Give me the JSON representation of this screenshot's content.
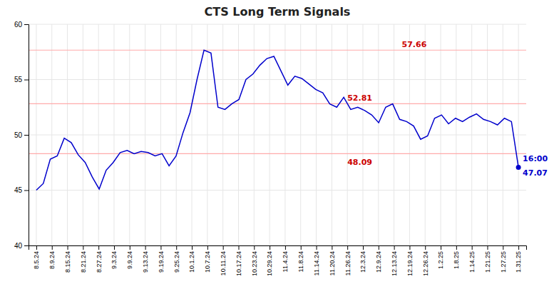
{
  "chart_data": {
    "type": "line",
    "title": "CTS Long Term Signals",
    "x": [
      0,
      0.4493,
      0.8986,
      1.3478,
      1.7971,
      2.2464,
      2.6957,
      3.1449,
      3.5942,
      4.0435,
      4.4928,
      4.942,
      5.3913,
      5.8406,
      6.2899,
      6.7391,
      7.1884,
      7.6377,
      8.087,
      8.5362,
      8.9855,
      9.4348,
      9.8841,
      10.3333,
      10.7826,
      11.2319,
      11.6812,
      12.1304,
      12.5797,
      13.029,
      13.4783,
      13.9275,
      14.3768,
      14.8261,
      15.2754,
      15.7246,
      16.1739,
      16.6232,
      17.0725,
      17.5217,
      17.971,
      18.4203,
      18.8696,
      19.3188,
      19.7681,
      20.2174,
      20.6667,
      21.1159,
      21.5652,
      22.0145,
      22.4638,
      22.913,
      23.3623,
      23.8116,
      24.2609,
      24.7101,
      25.1594,
      25.6087,
      26.058,
      26.5072,
      26.9565,
      27.4058,
      27.8551,
      28.3043,
      28.7536,
      29.2029,
      29.6522,
      30.1014,
      30.5507,
      31
    ],
    "values": [
      45.0,
      45.6,
      47.8,
      48.1,
      49.7,
      49.3,
      48.2,
      47.5,
      46.2,
      45.1,
      46.8,
      47.5,
      48.4,
      48.6,
      48.3,
      48.5,
      48.4,
      48.1,
      48.3,
      47.2,
      48.09,
      50.2,
      52.0,
      55.0,
      57.66,
      57.4,
      52.5,
      52.3,
      52.81,
      53.2,
      55.0,
      55.5,
      56.3,
      56.9,
      57.1,
      55.8,
      54.5,
      55.3,
      55.1,
      54.6,
      54.1,
      53.8,
      52.8,
      52.5,
      53.4,
      52.3,
      52.5,
      52.2,
      51.8,
      51.1,
      52.5,
      52.8,
      51.4,
      51.2,
      50.8,
      49.6,
      49.9,
      51.5,
      51.8,
      51.0,
      51.5,
      51.2,
      51.6,
      51.9,
      51.4,
      51.2,
      50.9,
      51.5,
      51.2,
      47.07
    ],
    "color": "#0000cc",
    "hlines": {
      "values": [
        48.3,
        52.81,
        57.66
      ],
      "color": "#ffaaaa"
    },
    "annotations": [
      {
        "text": "48.09",
        "x": 20,
        "y": 48.09,
        "color": "#cc0000"
      },
      {
        "text": "57.66",
        "x": 23.5,
        "y": 57.66,
        "color": "#cc0000"
      },
      {
        "text": "52.81",
        "x": 20,
        "y": 52.81,
        "color": "#cc0000"
      },
      {
        "text": "16:00",
        "x": 31,
        "y": 47.07,
        "color": "#0000cc"
      },
      {
        "text": "47.07",
        "x": 31,
        "y": 47.07,
        "color": "#0000cc"
      }
    ],
    "xlim": [
      -0.5,
      31.5
    ],
    "xticks": [
      {
        "value": 0,
        "label": "8.5.24"
      },
      {
        "value": 1,
        "label": "8.9.24"
      },
      {
        "value": 2,
        "label": "8.15.24"
      },
      {
        "value": 3,
        "label": "8.21.24"
      },
      {
        "value": 4,
        "label": "8.27.24"
      },
      {
        "value": 5,
        "label": "9.3.24"
      },
      {
        "value": 6,
        "label": "9.9.24"
      },
      {
        "value": 7,
        "label": "9.13.24"
      },
      {
        "value": 8,
        "label": "9.19.24"
      },
      {
        "value": 9,
        "label": "9.25.24"
      },
      {
        "value": 10,
        "label": "10.1.24"
      },
      {
        "value": 11,
        "label": "10.7.24"
      },
      {
        "value": 12,
        "label": "10.11.24"
      },
      {
        "value": 13,
        "label": "10.17.24"
      },
      {
        "value": 14,
        "label": "10.23.24"
      },
      {
        "value": 15,
        "label": "10.29.24"
      },
      {
        "value": 16,
        "label": "11.4.24"
      },
      {
        "value": 17,
        "label": "11.8.24"
      },
      {
        "value": 18,
        "label": "11.14.24"
      },
      {
        "value": 19,
        "label": "11.20.24"
      },
      {
        "value": 20,
        "label": "11.26.24"
      },
      {
        "value": 21,
        "label": "12.3.24"
      },
      {
        "value": 22,
        "label": "12.9.24"
      },
      {
        "value": 23,
        "label": "12.13.24"
      },
      {
        "value": 24,
        "label": "12.19.24"
      },
      {
        "value": 25,
        "label": "12.26.24"
      },
      {
        "value": 26,
        "label": "1.2.25"
      },
      {
        "value": 27,
        "label": "1.8.25"
      },
      {
        "value": 28,
        "label": "1.14.25"
      },
      {
        "value": 29,
        "label": "1.21.25"
      },
      {
        "value": 30,
        "label": "1.27.25"
      },
      {
        "value": 31,
        "label": "1.31.25"
      }
    ],
    "ylim": [
      40,
      60
    ],
    "yticks": [
      40,
      45,
      50,
      55,
      60
    ],
    "grid": true
  }
}
